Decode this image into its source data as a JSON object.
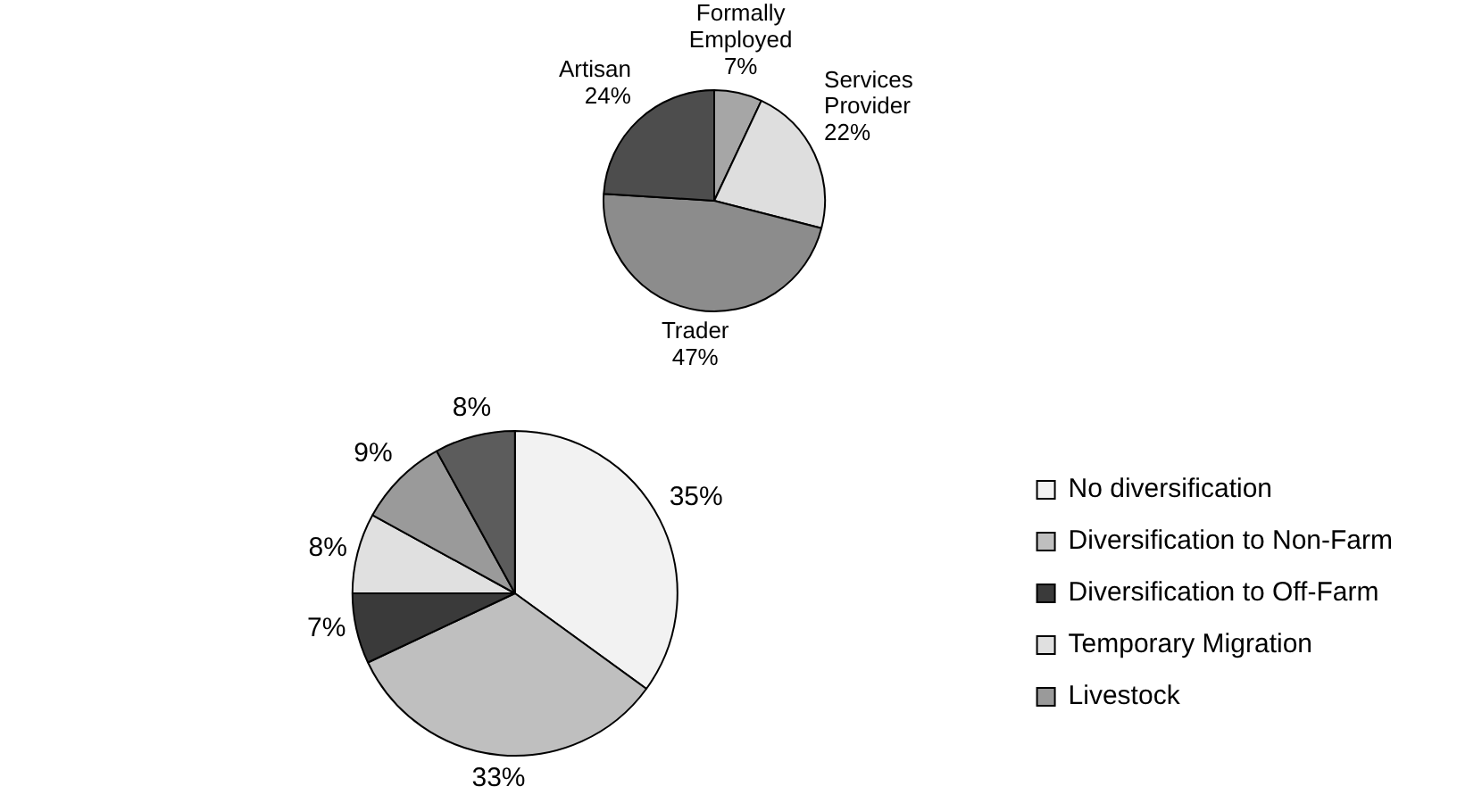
{
  "chart_data": [
    {
      "type": "pie",
      "categories": [
        "Formally Employed",
        "Services Provider",
        "Trader",
        "Artisan"
      ],
      "values": [
        7,
        22,
        47,
        24
      ],
      "value_labels": [
        "7%",
        "22%",
        "47%",
        "24%"
      ],
      "colors": [
        "#a6a6a6",
        "#dedede",
        "#8c8c8c",
        "#4d4d4d"
      ],
      "legend": false
    },
    {
      "type": "pie",
      "categories": [
        "No diversification",
        "Diversification to Non-Farm",
        "Diversification to Off-Farm",
        "Temporary Migration",
        "Livestock",
        null
      ],
      "values": [
        35,
        33,
        7,
        8,
        9,
        8
      ],
      "value_labels": [
        "35%",
        "33%",
        "7%",
        "8%",
        "9%",
        "8%"
      ],
      "colors": [
        "#f2f2f2",
        "#bfbfbf",
        "#3a3a3a",
        "#e0e0e0",
        "#9a9a9a",
        "#5c5c5c"
      ],
      "legend": "right"
    }
  ]
}
